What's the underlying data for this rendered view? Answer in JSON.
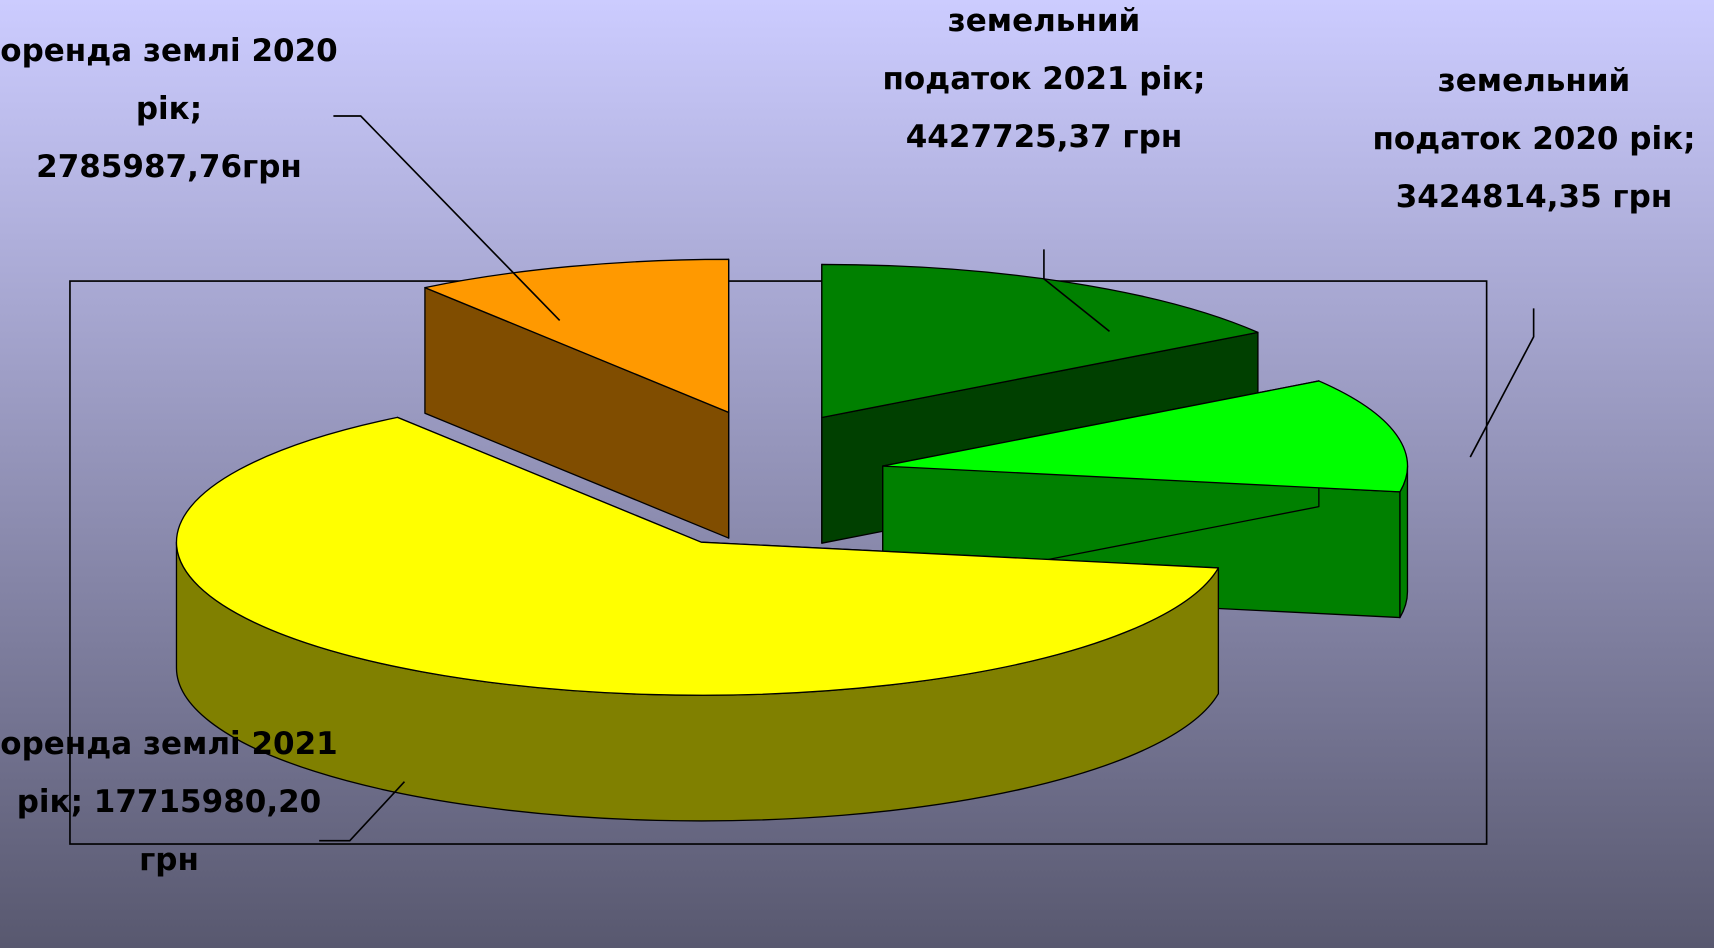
{
  "chart_data": {
    "type": "pie",
    "categories": [
      "оренда землі 2020 рік;",
      "оренда землі 2021 рік;",
      "земельний податок 2020 рік;",
      "земельний податок 2021 рік;"
    ],
    "values": [
      2785987.76,
      17715980.2,
      3424814.35,
      4427725.37
    ],
    "value_labels": [
      "2785987,76грн",
      "17715980,20 грн",
      "3424814,35 грн",
      "4427725,37 грн"
    ],
    "colors": [
      "#ff9900",
      "#ffff00",
      "#00ff00",
      "#008000"
    ]
  }
}
